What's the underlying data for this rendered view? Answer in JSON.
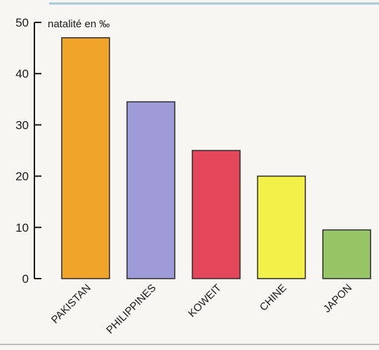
{
  "chart_data": {
    "type": "bar",
    "ylabel": "natalité en ‰",
    "categories": [
      "PAKISTAN",
      "PHILIPPINES",
      "KOWEIT",
      "CHINE",
      "JAPON"
    ],
    "values": [
      47,
      34.5,
      25,
      20,
      9.5
    ],
    "colors": [
      "#f0a52a",
      "#9f9bd8",
      "#e4475a",
      "#f4f04a",
      "#97c465"
    ],
    "yticks": [
      0,
      10,
      20,
      30,
      40,
      50
    ],
    "ylim": [
      0,
      50
    ],
    "grid": false
  }
}
